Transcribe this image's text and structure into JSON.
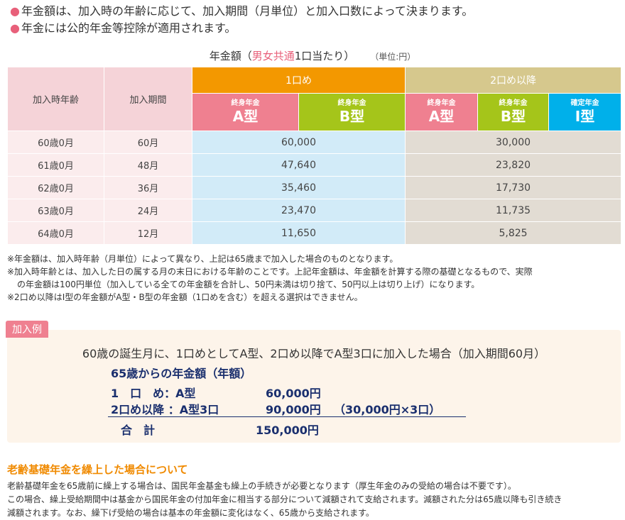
{
  "bullets": [
    "年金額は、加入時の年齢に応じて、加入期間（月単位）と加入口数によって決まります。",
    "年金には公的年金等控除が適用されます。"
  ],
  "table_caption": {
    "part1": "年金額（",
    "part2": "男女共通",
    "part3": "1口当たり）",
    "unit": "（単位:円）"
  },
  "table": {
    "col_age": "加入時年齢",
    "col_period": "加入期間",
    "group1": "1口め",
    "group2": "2口め以降",
    "types": [
      {
        "small": "終身年金",
        "big": "A型"
      },
      {
        "small": "終身年金",
        "big": "B型"
      },
      {
        "small": "終身年金",
        "big": "A型"
      },
      {
        "small": "終身年金",
        "big": "B型"
      },
      {
        "small": "確定年金",
        "big": "I型"
      }
    ],
    "rows": [
      {
        "age": "60歳0月",
        "period": "60月",
        "first": "60,000",
        "second": "30,000"
      },
      {
        "age": "61歳0月",
        "period": "48月",
        "first": "47,640",
        "second": "23,820"
      },
      {
        "age": "62歳0月",
        "period": "36月",
        "first": "35,460",
        "second": "17,730"
      },
      {
        "age": "63歳0月",
        "period": "24月",
        "first": "23,470",
        "second": "11,735"
      },
      {
        "age": "64歳0月",
        "period": "12月",
        "first": "11,650",
        "second": "5,825"
      }
    ]
  },
  "notes": [
    "※年金額は、加入時年齢（月単位）によって異なり、上記は65歳まで加入した場合のものとなります。",
    "※加入時年齢とは、加入した日の属する月の末日における年齢のことです。上記年金額は、年金額を計算する際の基礎となるもので、実際",
    "の年金額は100円単位（加入している全ての年金額を合計し、50円未満は切り捨て、50円以上は切り上げ）になります。",
    "※2口め以降はI型の年金額がA型・B型の年金額（1口めを含む）を超える選択はできません。"
  ],
  "example": {
    "tab": "加入例",
    "heading": "60歳の誕生月に、1口めとしてA型、2口め以降でA型3口に加入した場合（加入期間60月）",
    "subheading": "65歳からの年金額（年額）",
    "rows": [
      {
        "label": "1　口　め：A型",
        "amount": "60,000円",
        "detail": ""
      },
      {
        "label": "2口め以降 ：A型3口",
        "amount": "90,000円",
        "detail": "（30,000円×3口）"
      }
    ],
    "total_label": "合　計",
    "total_amount": "150,000円"
  },
  "retire": {
    "title": "老齢基礎年金を繰上した場合について",
    "lines": [
      "老齢基礎年金を65歳前に繰上する場合は、国民年金基金も繰上の手続きが必要となります（厚生年金のみの受給の場合は不要です）。",
      "この場合、繰上受給期間中は基金から国民年金の付加年金に相当する部分について減額されて支給されます。減額された分は65歳以降も引き続き",
      "減額されます。なお、繰下げ受給の場合は基本の年金額に変化はなく、65歳から支給されます。"
    ]
  },
  "colors": {
    "accent_pink": "#ef8090",
    "accent_orange": "#f39800",
    "accent_green": "#a5c51a",
    "accent_blue": "#00b0ea",
    "navy": "#1a2f6e"
  }
}
